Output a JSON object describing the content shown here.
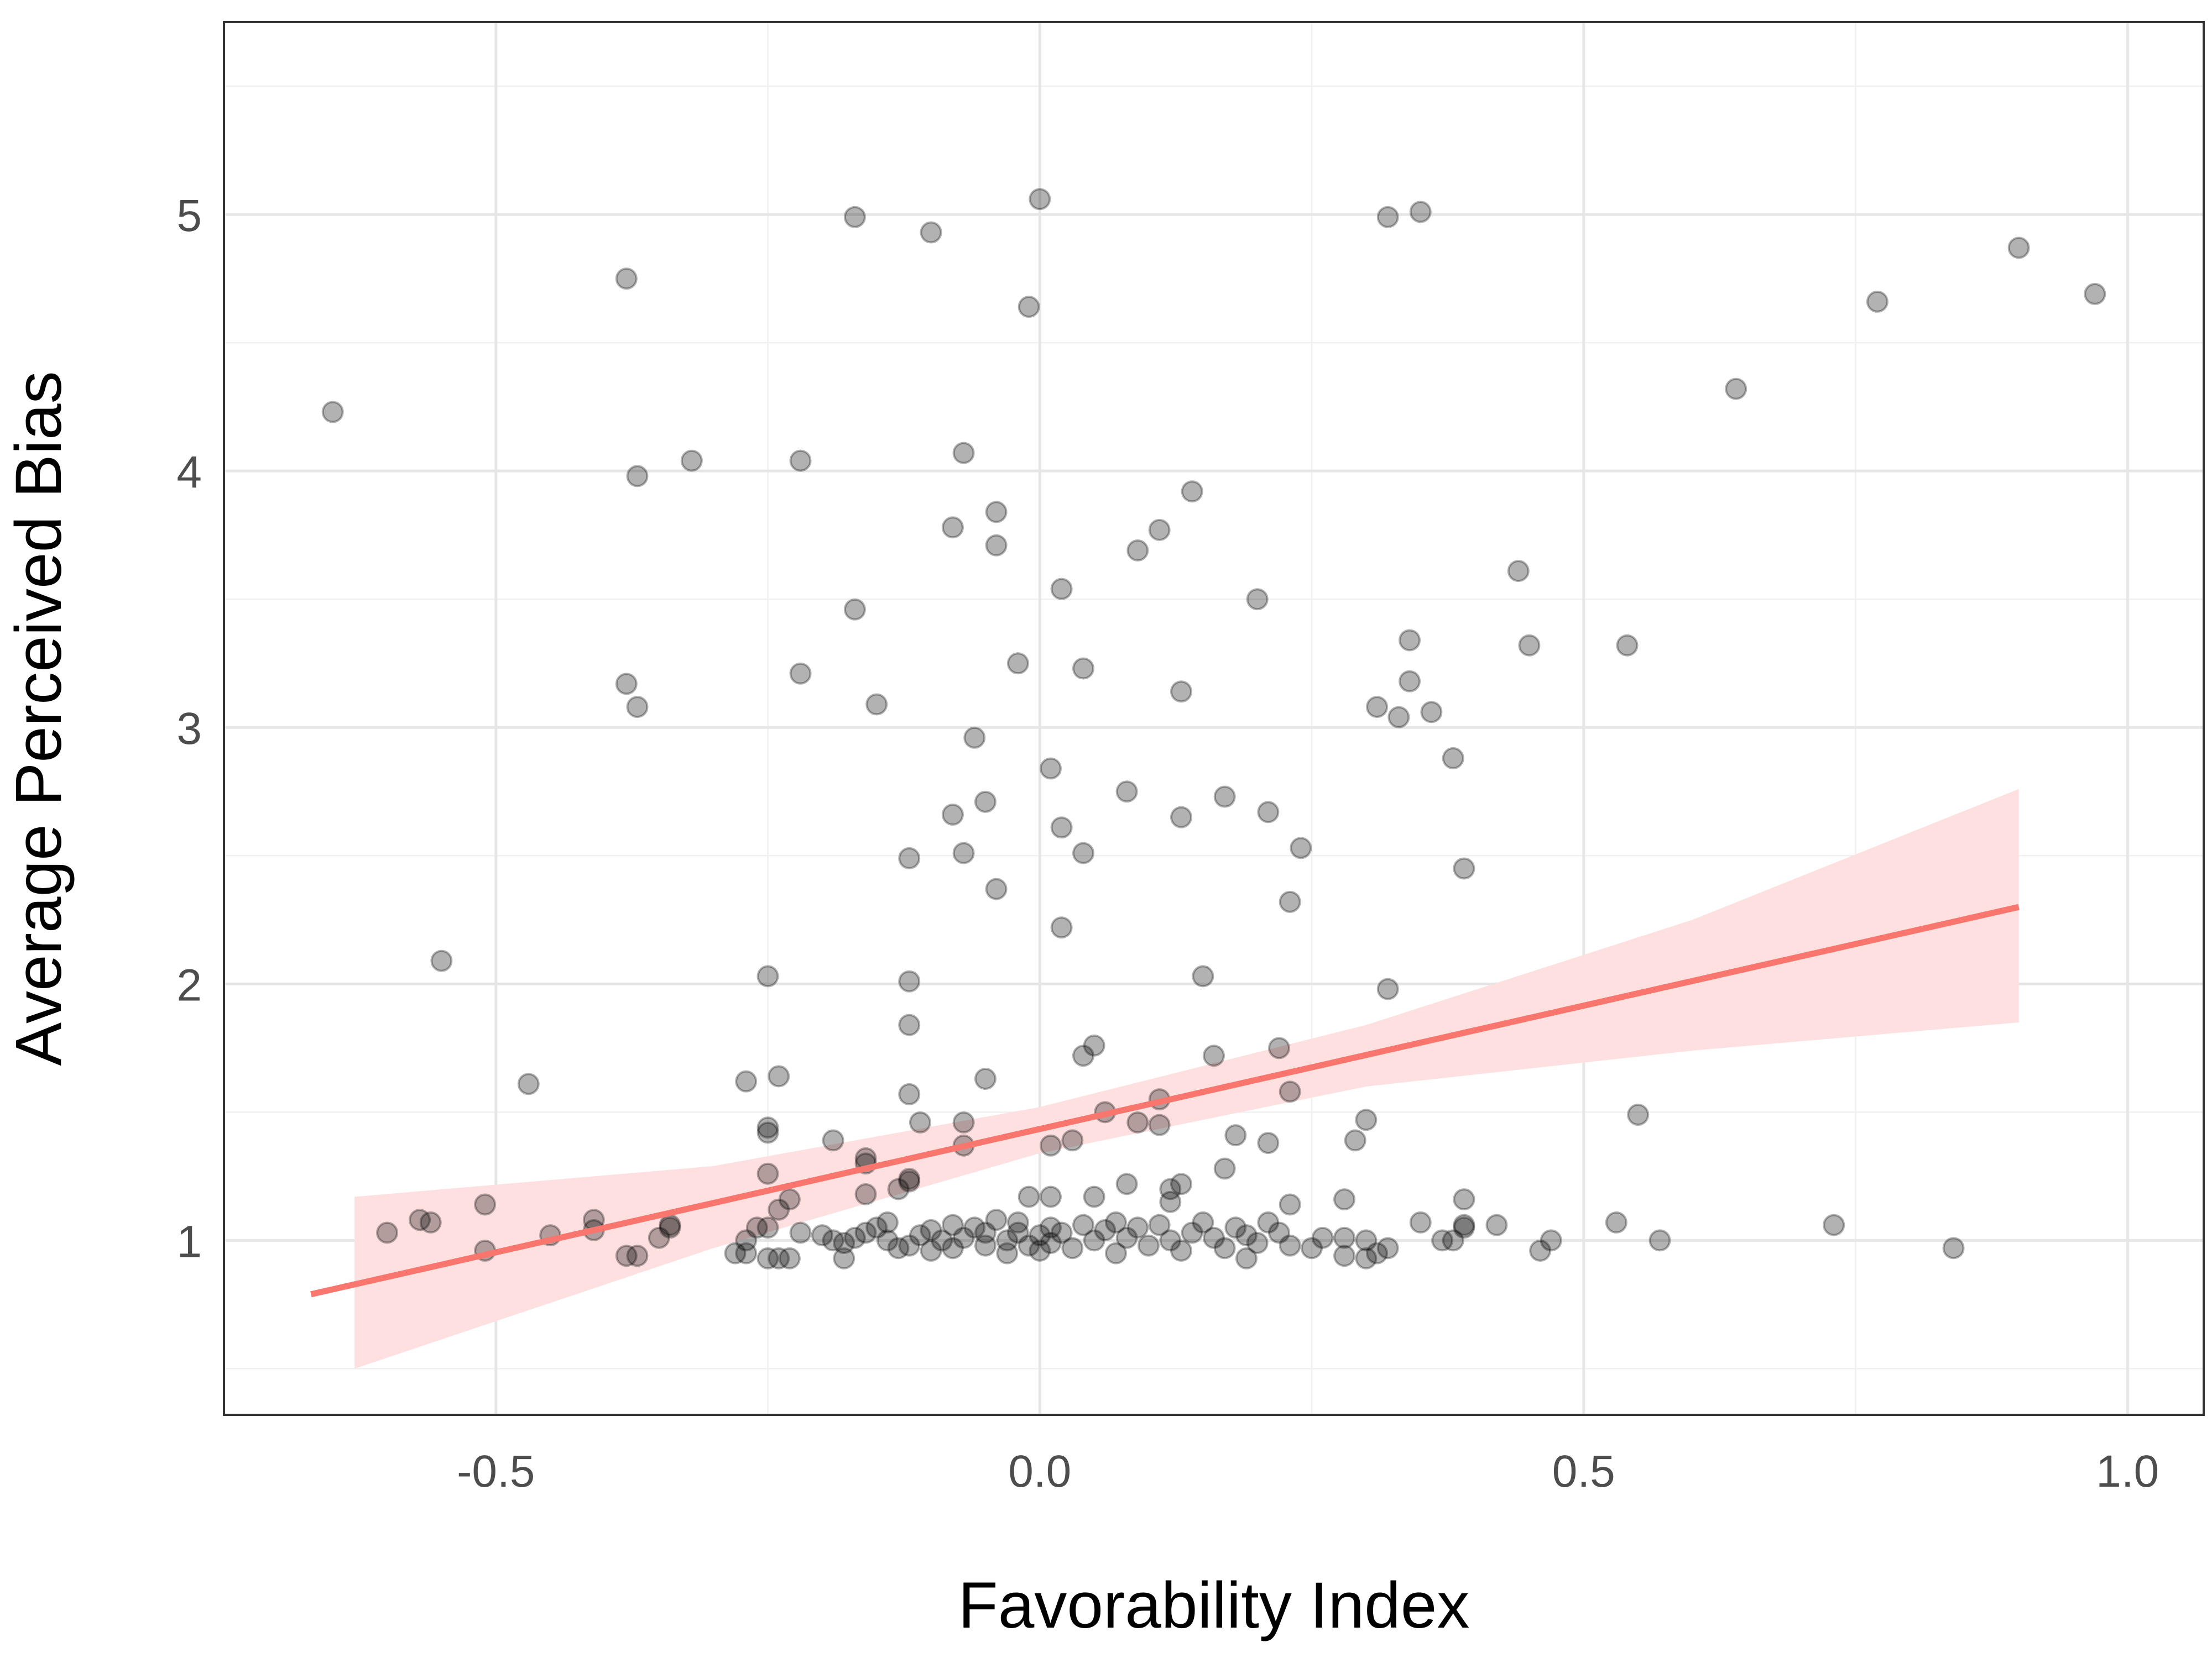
{
  "chart_data": {
    "type": "scatter",
    "xlabel": "Favorability Index",
    "ylabel": "Average Perceived Bias",
    "xlim": [
      -0.75,
      1.07
    ],
    "ylim": [
      0.32,
      5.75
    ],
    "x_ticks": [
      -0.5,
      0.0,
      0.5,
      1.0
    ],
    "x_tick_labels": [
      "-0.5",
      "0.0",
      "0.5",
      "1.0"
    ],
    "y_ticks": [
      1,
      2,
      3,
      4,
      5
    ],
    "y_tick_labels": [
      "1",
      "2",
      "3",
      "4",
      "5"
    ],
    "grid": true,
    "panel_border": true,
    "colors": {
      "points": "#000000",
      "fit_line": "#F8766D",
      "confidence_band": "#FFE0E0",
      "grid": "#E6E6E6"
    },
    "fit": {
      "type": "linear",
      "x": [
        -0.67,
        0.9
      ],
      "y": [
        0.79,
        2.3
      ],
      "band_x": [
        -0.63,
        -0.3,
        0.0,
        0.3,
        0.6,
        0.9
      ],
      "band_lower": [
        0.5,
        0.97,
        1.34,
        1.6,
        1.74,
        1.85
      ],
      "band_upper": [
        1.17,
        1.29,
        1.52,
        1.84,
        2.25,
        2.76
      ]
    },
    "points": [
      [
        -0.65,
        4.23
      ],
      [
        -0.38,
        4.75
      ],
      [
        -0.37,
        3.98
      ],
      [
        -0.32,
        4.04
      ],
      [
        -0.22,
        4.04
      ],
      [
        -0.38,
        3.17
      ],
      [
        -0.37,
        3.08
      ],
      [
        -0.22,
        3.21
      ],
      [
        -0.17,
        4.99
      ],
      [
        -0.1,
        4.93
      ],
      [
        0.0,
        5.06
      ],
      [
        -0.01,
        4.64
      ],
      [
        0.32,
        4.99
      ],
      [
        0.35,
        5.01
      ],
      [
        0.9,
        4.87
      ],
      [
        0.97,
        4.69
      ],
      [
        0.77,
        4.66
      ],
      [
        0.64,
        4.32
      ],
      [
        -0.07,
        4.07
      ],
      [
        -0.04,
        3.84
      ],
      [
        -0.08,
        3.78
      ],
      [
        -0.04,
        3.71
      ],
      [
        0.11,
        3.77
      ],
      [
        0.14,
        3.92
      ],
      [
        0.09,
        3.69
      ],
      [
        0.02,
        3.54
      ],
      [
        0.2,
        3.5
      ],
      [
        0.44,
        3.61
      ],
      [
        0.34,
        3.34
      ],
      [
        0.45,
        3.32
      ],
      [
        0.54,
        3.32
      ],
      [
        -0.17,
        3.46
      ],
      [
        -0.15,
        3.09
      ],
      [
        -0.02,
        3.25
      ],
      [
        0.04,
        3.23
      ],
      [
        0.13,
        3.14
      ],
      [
        0.31,
        3.08
      ],
      [
        0.34,
        3.18
      ],
      [
        0.33,
        3.04
      ],
      [
        0.36,
        3.06
      ],
      [
        0.38,
        2.88
      ],
      [
        -0.06,
        2.96
      ],
      [
        0.01,
        2.84
      ],
      [
        -0.05,
        2.71
      ],
      [
        -0.08,
        2.66
      ],
      [
        0.02,
        2.61
      ],
      [
        0.08,
        2.75
      ],
      [
        0.17,
        2.73
      ],
      [
        0.13,
        2.65
      ],
      [
        0.21,
        2.67
      ],
      [
        -0.12,
        2.49
      ],
      [
        -0.07,
        2.51
      ],
      [
        0.04,
        2.51
      ],
      [
        0.24,
        2.53
      ],
      [
        -0.04,
        2.37
      ],
      [
        0.23,
        2.32
      ],
      [
        0.39,
        2.45
      ],
      [
        0.02,
        2.22
      ],
      [
        -0.55,
        2.09
      ],
      [
        -0.25,
        2.03
      ],
      [
        -0.12,
        2.01
      ],
      [
        0.15,
        2.03
      ],
      [
        0.32,
        1.98
      ],
      [
        -0.12,
        1.84
      ],
      [
        0.05,
        1.76
      ],
      [
        0.04,
        1.72
      ],
      [
        0.16,
        1.72
      ],
      [
        0.22,
        1.75
      ],
      [
        -0.47,
        1.61
      ],
      [
        -0.27,
        1.62
      ],
      [
        -0.24,
        1.64
      ],
      [
        -0.05,
        1.63
      ],
      [
        -0.12,
        1.57
      ],
      [
        0.23,
        1.58
      ],
      [
        -0.25,
        1.44
      ],
      [
        -0.25,
        1.42
      ],
      [
        -0.11,
        1.46
      ],
      [
        -0.07,
        1.46
      ],
      [
        0.06,
        1.5
      ],
      [
        0.09,
        1.46
      ],
      [
        0.11,
        1.45
      ],
      [
        0.11,
        1.55
      ],
      [
        0.3,
        1.47
      ],
      [
        0.55,
        1.49
      ],
      [
        -0.19,
        1.39
      ],
      [
        -0.07,
        1.37
      ],
      [
        0.01,
        1.37
      ],
      [
        0.03,
        1.39
      ],
      [
        0.18,
        1.41
      ],
      [
        0.21,
        1.38
      ],
      [
        0.29,
        1.39
      ],
      [
        -0.16,
        1.32
      ],
      [
        -0.16,
        1.3
      ],
      [
        -0.25,
        1.26
      ],
      [
        -0.12,
        1.24
      ],
      [
        -0.12,
        1.23
      ],
      [
        -0.13,
        1.2
      ],
      [
        0.08,
        1.22
      ],
      [
        0.13,
        1.22
      ],
      [
        0.12,
        1.2
      ],
      [
        0.17,
        1.28
      ],
      [
        -0.16,
        1.18
      ],
      [
        -0.23,
        1.16
      ],
      [
        -0.24,
        1.12
      ],
      [
        -0.01,
        1.17
      ],
      [
        0.01,
        1.17
      ],
      [
        0.05,
        1.17
      ],
      [
        0.12,
        1.15
      ],
      [
        0.28,
        1.16
      ],
      [
        0.39,
        1.16
      ],
      [
        0.23,
        1.14
      ],
      [
        -0.51,
        1.14
      ],
      [
        -0.41,
        1.08
      ],
      [
        -0.57,
        1.08
      ],
      [
        -0.56,
        1.07
      ],
      [
        -0.34,
        1.05
      ],
      [
        -0.34,
        1.06
      ],
      [
        -0.41,
        1.04
      ],
      [
        -0.45,
        1.02
      ],
      [
        -0.6,
        1.03
      ],
      [
        -0.35,
        1.01
      ],
      [
        -0.51,
        0.96
      ],
      [
        -0.38,
        0.94
      ],
      [
        -0.37,
        0.94
      ],
      [
        -0.28,
        0.95
      ],
      [
        -0.27,
        0.95
      ],
      [
        -0.25,
        0.93
      ],
      [
        -0.24,
        0.93
      ],
      [
        -0.23,
        0.93
      ],
      [
        -0.18,
        0.93
      ],
      [
        -0.27,
        1.0
      ],
      [
        -0.26,
        1.05
      ],
      [
        -0.25,
        1.05
      ],
      [
        -0.22,
        1.03
      ],
      [
        -0.2,
        1.02
      ],
      [
        -0.19,
        1.0
      ],
      [
        -0.18,
        0.99
      ],
      [
        -0.17,
        1.01
      ],
      [
        -0.16,
        1.03
      ],
      [
        -0.15,
        1.05
      ],
      [
        -0.14,
        1.07
      ],
      [
        -0.14,
        1.0
      ],
      [
        -0.13,
        0.97
      ],
      [
        -0.12,
        0.98
      ],
      [
        -0.11,
        1.02
      ],
      [
        -0.1,
        1.04
      ],
      [
        -0.1,
        0.96
      ],
      [
        -0.09,
        1.0
      ],
      [
        -0.08,
        1.06
      ],
      [
        -0.08,
        0.97
      ],
      [
        -0.07,
        1.01
      ],
      [
        -0.06,
        1.05
      ],
      [
        -0.05,
        0.98
      ],
      [
        -0.05,
        1.03
      ],
      [
        -0.04,
        1.08
      ],
      [
        -0.03,
        1.0
      ],
      [
        -0.03,
        0.95
      ],
      [
        -0.02,
        1.03
      ],
      [
        -0.02,
        1.07
      ],
      [
        -0.01,
        0.98
      ],
      [
        0.0,
        1.02
      ],
      [
        0.0,
        0.96
      ],
      [
        0.01,
        1.05
      ],
      [
        0.01,
        0.99
      ],
      [
        0.02,
        1.03
      ],
      [
        0.03,
        0.97
      ],
      [
        0.04,
        1.06
      ],
      [
        0.05,
        1.0
      ],
      [
        0.06,
        1.04
      ],
      [
        0.07,
        0.95
      ],
      [
        0.07,
        1.07
      ],
      [
        0.08,
        1.01
      ],
      [
        0.09,
        1.05
      ],
      [
        0.1,
        0.98
      ],
      [
        0.11,
        1.06
      ],
      [
        0.12,
        1.0
      ],
      [
        0.13,
        0.96
      ],
      [
        0.14,
        1.03
      ],
      [
        0.15,
        1.07
      ],
      [
        0.16,
        1.01
      ],
      [
        0.17,
        0.97
      ],
      [
        0.18,
        1.05
      ],
      [
        0.19,
        0.93
      ],
      [
        0.19,
        1.02
      ],
      [
        0.2,
        0.99
      ],
      [
        0.21,
        1.07
      ],
      [
        0.22,
        1.03
      ],
      [
        0.23,
        0.98
      ],
      [
        0.25,
        0.97
      ],
      [
        0.26,
        1.01
      ],
      [
        0.28,
        1.01
      ],
      [
        0.28,
        0.94
      ],
      [
        0.3,
        0.93
      ],
      [
        0.3,
        1.0
      ],
      [
        0.31,
        0.95
      ],
      [
        0.32,
        0.97
      ],
      [
        0.35,
        1.07
      ],
      [
        0.37,
        1.0
      ],
      [
        0.38,
        1.0
      ],
      [
        0.39,
        1.05
      ],
      [
        0.39,
        1.06
      ],
      [
        0.42,
        1.06
      ],
      [
        0.46,
        0.96
      ],
      [
        0.47,
        1.0
      ],
      [
        0.53,
        1.07
      ],
      [
        0.57,
        1.0
      ],
      [
        0.73,
        1.06
      ],
      [
        0.84,
        0.97
      ]
    ]
  }
}
